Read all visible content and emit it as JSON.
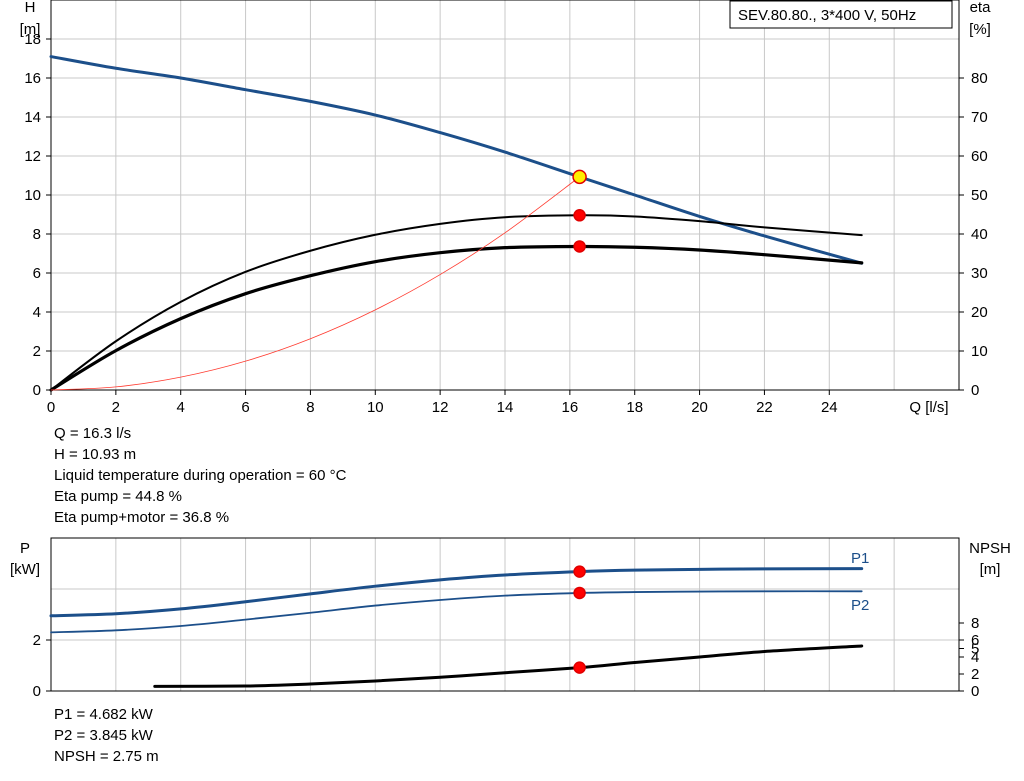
{
  "chart_data": [
    {
      "type": "line",
      "title": "SEV.80.80., 3*400 V, 50Hz",
      "xlabel": "Q [l/s]",
      "ylabel_left": [
        "H",
        "[m]"
      ],
      "ylabel_right": [
        "eta",
        "[%]"
      ],
      "xlim": [
        0,
        28
      ],
      "ylim_left": [
        0,
        20
      ],
      "ylim_right": [
        0,
        100
      ],
      "x_ticks": [
        "0",
        "2",
        "4",
        "6",
        "8",
        "10",
        "12",
        "14",
        "16",
        "18",
        "20",
        "22",
        "24"
      ],
      "y_ticks_left": [
        "0",
        "2",
        "4",
        "6",
        "8",
        "10",
        "12",
        "14",
        "16",
        "18"
      ],
      "y_ticks_right": [
        "0",
        "10",
        "20",
        "30",
        "40",
        "50",
        "60",
        "70",
        "80"
      ],
      "grid": true,
      "series": [
        {
          "key": "H",
          "axis": "left",
          "color": "#1c4f8a",
          "width": 3,
          "x": [
            0,
            2,
            4,
            6,
            8,
            10,
            12,
            14,
            16.3,
            18,
            20,
            22,
            25
          ],
          "y": [
            17.1,
            16.5,
            16.0,
            15.4,
            14.8,
            14.1,
            13.2,
            12.2,
            10.93,
            10.0,
            8.9,
            7.9,
            6.5
          ]
        },
        {
          "key": "eta_pump",
          "axis": "right",
          "color": "#000000",
          "width": 2,
          "x": [
            0,
            2,
            4,
            6,
            8,
            10,
            12,
            14,
            16.3,
            18,
            20,
            22,
            25
          ],
          "y": [
            0,
            12.5,
            22.6,
            30.3,
            35.7,
            39.8,
            42.6,
            44.3,
            44.8,
            44.5,
            43.3,
            41.7,
            39.7
          ]
        },
        {
          "key": "eta_pump_motor",
          "axis": "right",
          "color": "#000000",
          "width": 3.2,
          "x": [
            0,
            2,
            4,
            6,
            8,
            10,
            12,
            14,
            16.3,
            18,
            20,
            22,
            25
          ],
          "y": [
            0,
            10.1,
            18.3,
            24.7,
            29.3,
            32.9,
            35.2,
            36.5,
            36.8,
            36.6,
            35.9,
            34.7,
            32.6
          ]
        },
        {
          "key": "system",
          "axis": "left",
          "color": "#ff3b30",
          "width": 0.8,
          "x": [
            0,
            2,
            4,
            6,
            8,
            10,
            12,
            14,
            16.3
          ],
          "y": [
            0,
            0.16,
            0.66,
            1.48,
            2.63,
            4.11,
            5.92,
            8.06,
            10.93
          ]
        }
      ],
      "points": [
        {
          "x": 16.3,
          "y": 10.93,
          "axis": "left",
          "fill": "#ffee00",
          "stroke": "#e00000"
        },
        {
          "x": 16.3,
          "y": 44.8,
          "axis": "right",
          "fill": "#ff0000",
          "stroke": "#e00000"
        },
        {
          "x": 16.3,
          "y": 36.8,
          "axis": "right",
          "fill": "#ff0000",
          "stroke": "#e00000"
        }
      ]
    },
    {
      "type": "line",
      "ylabel_left": [
        "P",
        "[kW]"
      ],
      "ylabel_right": [
        "NPSH",
        "[m]"
      ],
      "xlim": [
        0,
        28
      ],
      "ylim_left": [
        0,
        6
      ],
      "ylim_right": [
        0,
        18
      ],
      "y_ticks_left": [
        "0",
        "2"
      ],
      "y_ticks_right": [
        "0",
        "2",
        "4",
        "5",
        "6",
        "8"
      ],
      "grid": true,
      "series": [
        {
          "name": "P1",
          "key": "P1",
          "axis": "left",
          "color": "#1c4f8a",
          "width": 3,
          "x": [
            0,
            2,
            4,
            6,
            8,
            10,
            12,
            14,
            16.3,
            18,
            20,
            22,
            25
          ],
          "y": [
            2.95,
            3.03,
            3.22,
            3.5,
            3.81,
            4.11,
            4.36,
            4.55,
            4.682,
            4.74,
            4.77,
            4.79,
            4.8
          ]
        },
        {
          "name": "P2",
          "key": "P2",
          "axis": "left",
          "color": "#1c4f8a",
          "width": 1.8,
          "x": [
            0,
            2,
            4,
            6,
            8,
            10,
            12,
            14,
            16.3,
            18,
            20,
            22,
            25
          ],
          "y": [
            2.3,
            2.38,
            2.55,
            2.8,
            3.07,
            3.35,
            3.57,
            3.74,
            3.845,
            3.88,
            3.9,
            3.91,
            3.91
          ]
        },
        {
          "key": "NPSH",
          "axis": "right",
          "color": "#000000",
          "width": 3,
          "x": [
            3.2,
            6,
            8,
            10,
            12,
            14,
            16.3,
            18,
            20,
            22,
            25
          ],
          "y": [
            0.55,
            0.59,
            0.82,
            1.18,
            1.62,
            2.15,
            2.75,
            3.35,
            4.0,
            4.65,
            5.3
          ]
        }
      ],
      "points": [
        {
          "x": 16.3,
          "y": 4.682,
          "axis": "left",
          "fill": "#ff0000",
          "stroke": "#e00000"
        },
        {
          "x": 16.3,
          "y": 3.845,
          "axis": "left",
          "fill": "#ff0000",
          "stroke": "#e00000"
        },
        {
          "x": 16.3,
          "y": 2.75,
          "axis": "right",
          "fill": "#ff0000",
          "stroke": "#e00000"
        }
      ]
    }
  ],
  "info_top": [
    "Q = 16.3 l/s",
    "H = 10.93 m",
    "Liquid temperature during operation = 60 °C",
    "Eta pump = 44.8 %",
    "Eta pump+motor = 36.8 %"
  ],
  "info_bottom": [
    "P1 = 4.682 kW",
    "P2 = 3.845 kW",
    "NPSH = 2.75 m"
  ]
}
